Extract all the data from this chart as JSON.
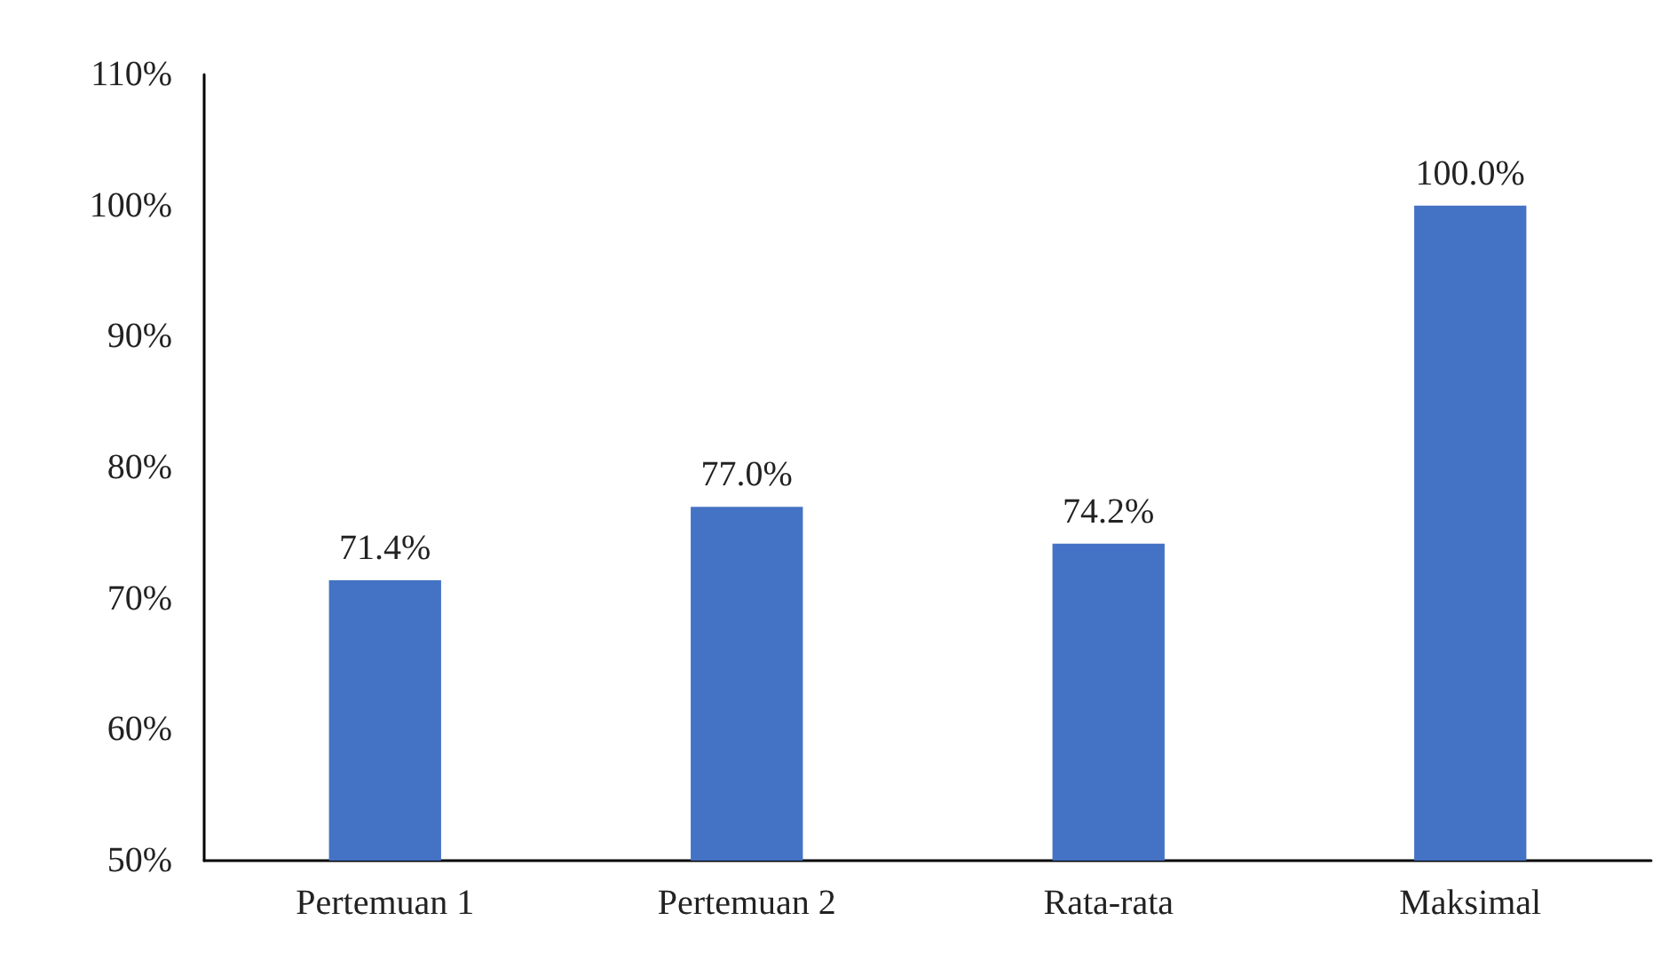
{
  "chart_data": {
    "type": "bar",
    "categories": [
      "Pertemuan 1",
      "Pertemuan 2",
      "Rata-rata",
      "Maksimal"
    ],
    "values": [
      71.4,
      77.0,
      74.2,
      100.0
    ],
    "value_labels": [
      "71.4%",
      "77.0%",
      "74.2%",
      "100.0%"
    ],
    "color": "#4472c4",
    "ylim": [
      50,
      110
    ],
    "yticks": [
      {
        "value": 50,
        "label": "50%"
      },
      {
        "value": 60,
        "label": "60%"
      },
      {
        "value": 70,
        "label": "70%"
      },
      {
        "value": 80,
        "label": "80%"
      },
      {
        "value": 90,
        "label": "90%"
      },
      {
        "value": 100,
        "label": "100%"
      },
      {
        "value": 110,
        "label": "110%"
      }
    ],
    "grid": false
  }
}
